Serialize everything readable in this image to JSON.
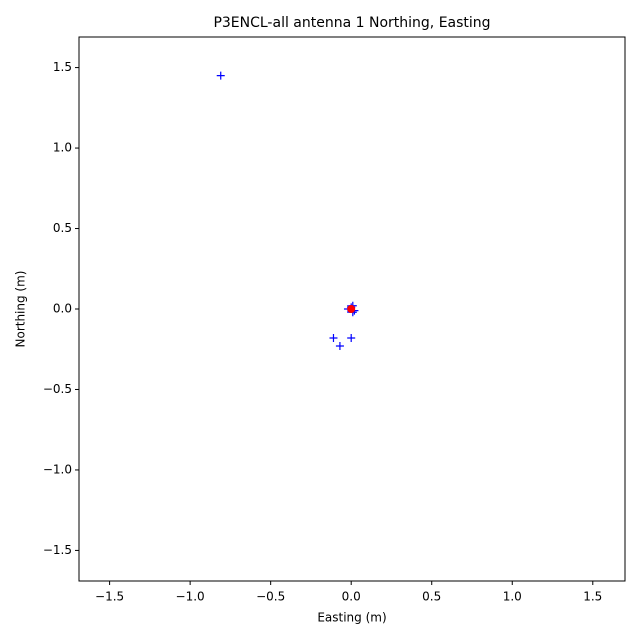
{
  "chart_data": {
    "type": "scatter",
    "title": "P3ENCL-all antenna 1 Northing, Easting",
    "x_label": "Easting (m)",
    "y_label": "Northing (m)",
    "xlim": [
      -1.69,
      1.7
    ],
    "ylim": [
      -1.69,
      1.69
    ],
    "xticks": [
      {
        "value": -1.5,
        "label": "−1.5"
      },
      {
        "value": -1.0,
        "label": "−1.0"
      },
      {
        "value": -0.5,
        "label": "−0.5"
      },
      {
        "value": 0,
        "label": "0.0"
      },
      {
        "value": 0.5,
        "label": "0.5"
      },
      {
        "value": 1.0,
        "label": "1.0"
      },
      {
        "value": 1.5,
        "label": "1.5"
      }
    ],
    "yticks": [
      {
        "value": -1.5,
        "label": "−1.5"
      },
      {
        "value": -1.0,
        "label": "−1.0"
      },
      {
        "value": -0.5,
        "label": "−0.5"
      },
      {
        "value": 0,
        "label": "0.0"
      },
      {
        "value": 0.5,
        "label": "0.5"
      },
      {
        "value": 1.0,
        "label": "1.0"
      },
      {
        "value": 1.5,
        "label": "1.5"
      }
    ],
    "series": [
      {
        "color": "#0000ff",
        "marker": "plus",
        "x": [
          -0.81,
          -0.11,
          -0.07,
          0.0,
          0.01,
          -0.02,
          0.02,
          0.0,
          0.01
        ],
        "values": [
          1.45,
          -0.18,
          -0.23,
          -0.18,
          0.02,
          0.0,
          -0.01,
          0.01,
          -0.02
        ]
      },
      {
        "color": "#ff0000",
        "marker": "circle",
        "x": [
          0.0
        ],
        "values": [
          0.0
        ]
      }
    ]
  }
}
